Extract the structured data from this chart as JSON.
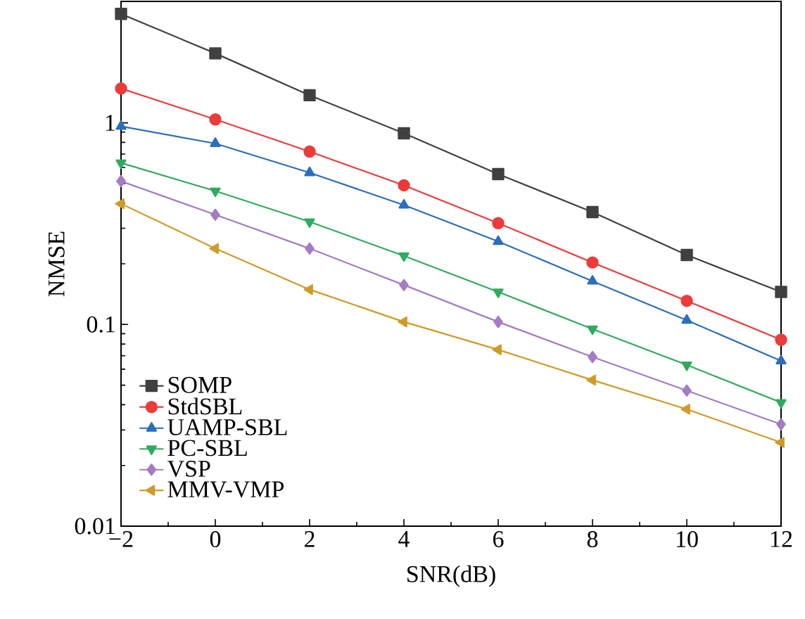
{
  "chart_data": {
    "type": "line",
    "xlabel": "SNR(dB)",
    "ylabel": "NMSE",
    "log": "y",
    "x": [
      -2,
      0,
      2,
      4,
      6,
      8,
      10,
      12
    ],
    "xlim": [
      -2,
      12
    ],
    "xticks": [
      {
        "value": -2,
        "label": "−2"
      },
      0,
      2,
      4,
      6,
      8,
      10,
      12
    ],
    "ylim": [
      0.01,
      4
    ],
    "yticks": [
      0.01,
      0.1,
      1
    ],
    "grid": false,
    "legend": "bottom left",
    "line_style": "solid",
    "series": [
      {
        "name": "SOMP",
        "color": "#404040",
        "marker": "square",
        "values": [
          3.47,
          2.21,
          1.37,
          0.887,
          0.557,
          0.361,
          0.221,
          0.145
        ]
      },
      {
        "name": "StdSBL",
        "color": "#ec3b3b",
        "marker": "circle",
        "values": [
          1.48,
          1.04,
          0.72,
          0.49,
          0.318,
          0.203,
          0.131,
          0.084
        ]
      },
      {
        "name": "UAMP-SBL",
        "color": "#2a6ebd",
        "marker": "triangle",
        "values": [
          0.96,
          0.79,
          0.566,
          0.391,
          0.258,
          0.164,
          0.105,
          0.066
        ]
      },
      {
        "name": "PC-SBL",
        "color": "#2fab5e",
        "marker": "triangle down",
        "values": [
          0.633,
          0.459,
          0.323,
          0.219,
          0.145,
          0.095,
          0.063,
          0.041
        ]
      },
      {
        "name": "VSP",
        "color": "#a57bc4",
        "marker": "diamond",
        "values": [
          0.514,
          0.35,
          0.238,
          0.157,
          0.103,
          0.069,
          0.047,
          0.032
        ]
      },
      {
        "name": "MMV-VMP",
        "color": "#cf9a27",
        "marker": "triangle left",
        "values": [
          0.397,
          0.238,
          0.149,
          0.103,
          0.075,
          0.053,
          0.038,
          0.026
        ]
      }
    ]
  }
}
